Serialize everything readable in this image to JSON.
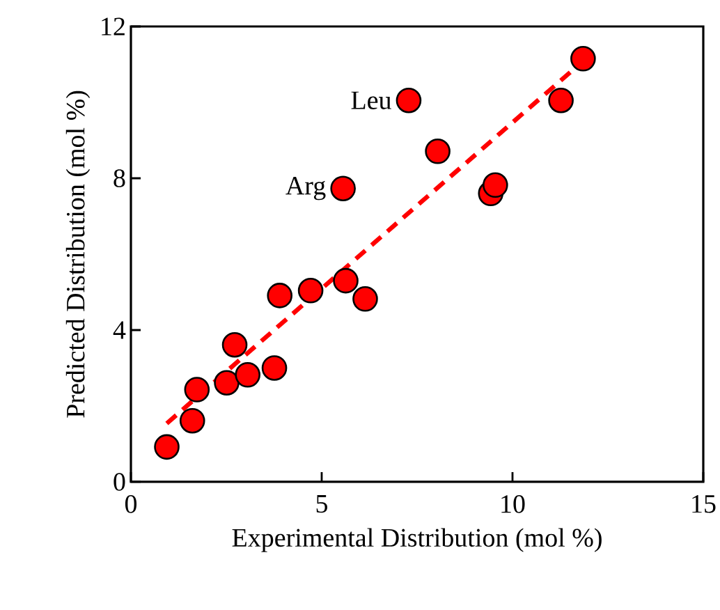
{
  "chart_data": {
    "type": "scatter",
    "xlabel": "Experimental Distribution (mol %)",
    "ylabel": "Predicted Distribution (mol %)",
    "xlim": [
      0,
      15
    ],
    "ylim": [
      0,
      12
    ],
    "xticks": [
      0,
      5,
      10,
      15
    ],
    "yticks": [
      0,
      4,
      8,
      12
    ],
    "series": [
      {
        "color": "#ff0000",
        "marker": "circle",
        "x": [
          0.94,
          1.61,
          1.73,
          2.51,
          2.72,
          3.06,
          3.76,
          3.9,
          4.71,
          5.63,
          6.14,
          5.56,
          7.28,
          8.04,
          9.43,
          9.55,
          11.27,
          11.85
        ],
        "values": [
          0.92,
          1.61,
          2.43,
          2.61,
          3.61,
          2.82,
          3.0,
          4.91,
          5.04,
          5.3,
          4.82,
          7.73,
          10.05,
          8.71,
          7.6,
          7.82,
          10.05,
          11.15
        ]
      },
      {
        "type": "line",
        "color": "#ff0000",
        "marker": "none",
        "line_style": "dashed",
        "x": [
          0.94,
          11.75
        ],
        "values": [
          1.54,
          11.0
        ]
      }
    ],
    "annotations": [
      {
        "text": "Leu",
        "x": 7.28,
        "y": 10.05
      },
      {
        "text": "Arg",
        "x": 5.56,
        "y": 7.73
      }
    ]
  }
}
